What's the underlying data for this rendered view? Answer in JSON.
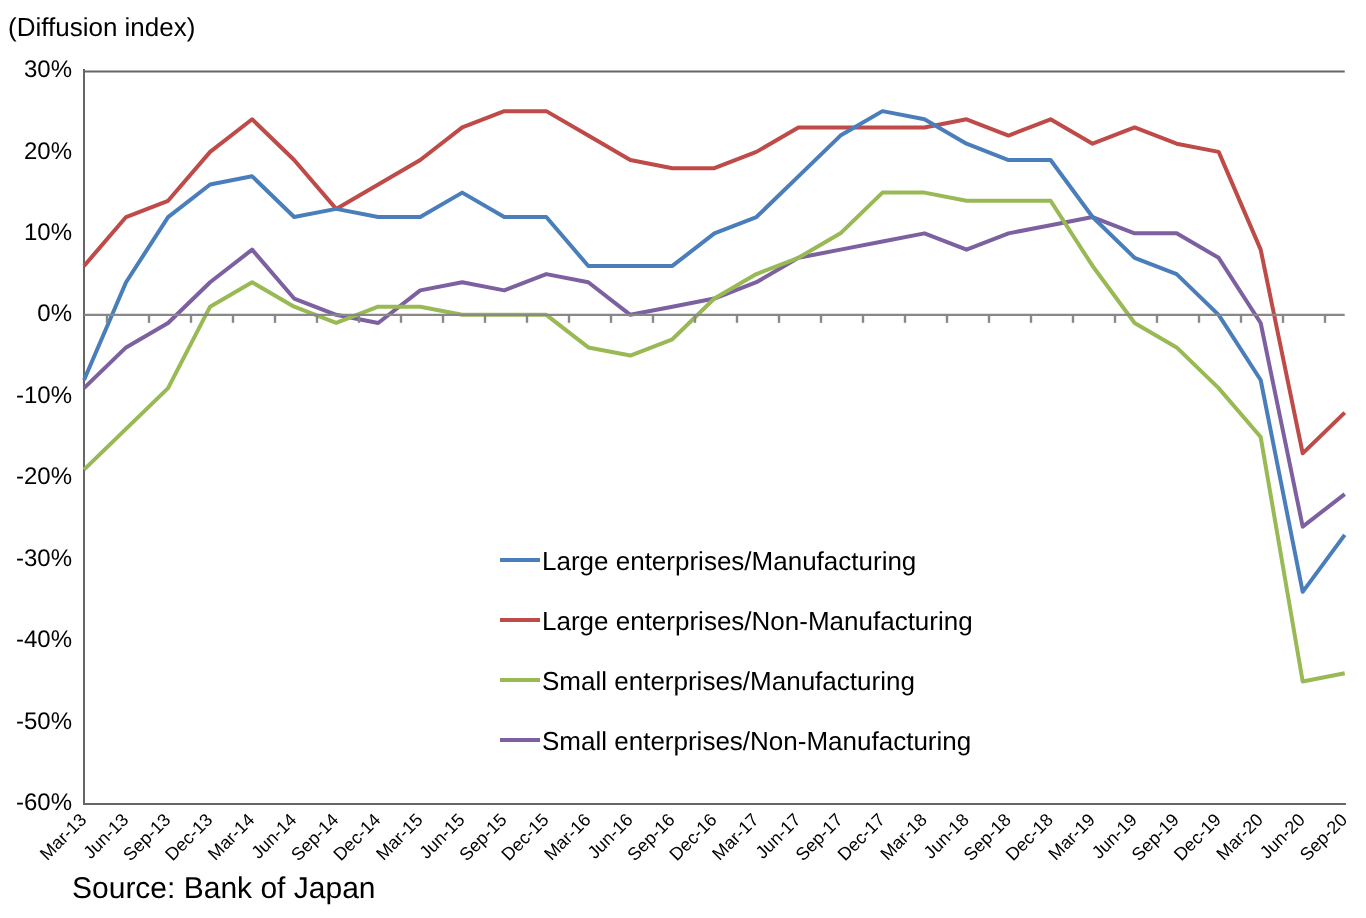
{
  "chart_data": {
    "type": "line",
    "ylabel": "(Diffusion index)",
    "categories": [
      "Mar-13",
      "Jun-13",
      "Sep-13",
      "Dec-13",
      "Mar-14",
      "Jun-14",
      "Sep-14",
      "Dec-14",
      "Mar-15",
      "Jun-15",
      "Sep-15",
      "Dec-15",
      "Mar-16",
      "Jun-16",
      "Sep-16",
      "Dec-16",
      "Mar-17",
      "Jun-17",
      "Sep-17",
      "Dec-17",
      "Mar-18",
      "Jun-18",
      "Sep-18",
      "Dec-18",
      "Mar-19",
      "Jun-19",
      "Sep-19",
      "Dec-19",
      "Mar-20",
      "Jun-20",
      "Sep-20"
    ],
    "series": [
      {
        "name": "Large enterprises/Manufacturing",
        "color": "#4a7ebb",
        "values": [
          -8,
          4,
          12,
          16,
          17,
          12,
          13,
          12,
          12,
          15,
          12,
          12,
          6,
          6,
          6,
          10,
          12,
          17,
          22,
          25,
          24,
          21,
          19,
          19,
          12,
          7,
          5,
          0,
          -8,
          -34,
          -27
        ]
      },
      {
        "name": "Large enterprises/Non-Manufacturing",
        "color": "#be4b48",
        "values": [
          6,
          12,
          14,
          20,
          24,
          19,
          13,
          16,
          19,
          23,
          25,
          25,
          22,
          19,
          18,
          18,
          20,
          23,
          23,
          23,
          23,
          24,
          22,
          24,
          21,
          23,
          21,
          20,
          8,
          -17,
          -12
        ]
      },
      {
        "name": "Small enterprises/Manufacturing",
        "color": "#98b954",
        "values": [
          -19,
          -14,
          -9,
          1,
          4,
          1,
          -1,
          1,
          1,
          0,
          0,
          0,
          -4,
          -5,
          -3,
          2,
          5,
          7,
          10,
          15,
          15,
          14,
          14,
          14,
          6,
          -1,
          -4,
          -9,
          -15,
          -45,
          -44
        ]
      },
      {
        "name": "Small enterprises/Non-Manufacturing",
        "color": "#7d60a0",
        "values": [
          -9,
          -4,
          -1,
          4,
          8,
          2,
          0,
          -1,
          3,
          4,
          3,
          5,
          4,
          0,
          1,
          2,
          4,
          7,
          8,
          9,
          10,
          8,
          10,
          11,
          12,
          10,
          10,
          7,
          -1,
          -26,
          -22
        ]
      }
    ],
    "ylim": [
      -60,
      30
    ],
    "yticks": [
      {
        "value": -60,
        "label": "-60%"
      },
      {
        "value": -50,
        "label": "-50%"
      },
      {
        "value": -40,
        "label": "-40%"
      },
      {
        "value": -30,
        "label": "-30%"
      },
      {
        "value": -20,
        "label": "-20%"
      },
      {
        "value": -10,
        "label": "-10%"
      },
      {
        "value": 0,
        "label": "0%"
      },
      {
        "value": 10,
        "label": "10%"
      },
      {
        "value": 20,
        "label": "20%"
      },
      {
        "value": 30,
        "label": "30%"
      }
    ],
    "ref_lines": [
      {
        "axis": "y",
        "value": 0,
        "color": "#888888"
      }
    ],
    "grid": false,
    "legend": "bottom",
    "marker": "none",
    "line_style": "solid",
    "annotations": [
      "Source:  Bank of Japan"
    ]
  }
}
